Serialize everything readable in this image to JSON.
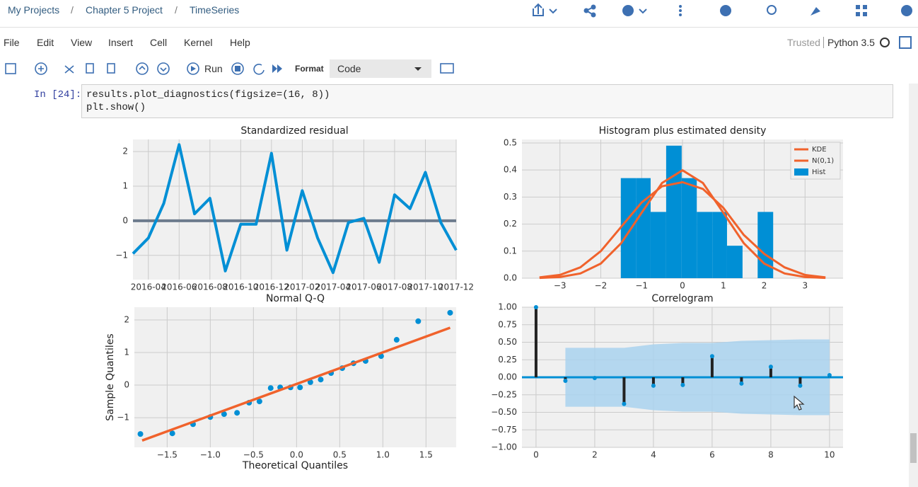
{
  "breadcrumb": [
    "My Projects",
    "/",
    "Chapter 5 Project",
    "/",
    "TimeSeries"
  ],
  "menu": [
    "File",
    "Edit",
    "View",
    "Insert",
    "Cell",
    "Kernel",
    "Help"
  ],
  "status": {
    "trusted": "Trusted",
    "kernel": "Python 3.5"
  },
  "toolbar": {
    "run": "Run",
    "format": "Format",
    "cell_type": "Code"
  },
  "cell": {
    "prompt": "In [24]:",
    "code": [
      "results.plot_diagnostics(figsize=(16, 8))",
      "plt.show()"
    ]
  },
  "chart_data": [
    {
      "type": "line",
      "title": "Standardized residual",
      "x": [
        "2016-03",
        "2016-04",
        "2016-05",
        "2016-06",
        "2016-07",
        "2016-08",
        "2016-09",
        "2016-10",
        "2016-11",
        "2016-12",
        "2017-01",
        "2017-02",
        "2017-03",
        "2017-04",
        "2017-05",
        "2017-06",
        "2017-07",
        "2017-08",
        "2017-09",
        "2017-10",
        "2017-11",
        "2017-12"
      ],
      "values": [
        -0.95,
        -0.5,
        0.5,
        2.2,
        0.2,
        0.65,
        -1.45,
        -0.1,
        -0.1,
        1.95,
        -0.85,
        0.87,
        -0.5,
        -1.5,
        -0.05,
        0.07,
        -1.2,
        0.75,
        0.35,
        1.4,
        -0.05,
        -0.85
      ],
      "color": "#008fd5",
      "hline": 0,
      "hline_color": "#6d7b8d",
      "xticks": [
        "2016-04",
        "2016-06",
        "2016-08",
        "2016-10",
        "2016-12",
        "2017-02",
        "2017-04",
        "2017-06",
        "2017-08",
        "2017-10",
        "2017-12"
      ],
      "ylim": [
        -1.7,
        2.35
      ],
      "yticks": [
        {
          "value": -1,
          "label": "−1"
        },
        0,
        1,
        2
      ],
      "grid": true
    },
    {
      "type": "histogram",
      "title": "Histogram plus estimated density",
      "name": "Hist",
      "color": "#008fd5",
      "bins": [
        -1.51,
        -1.14,
        -0.78,
        -0.4,
        -0.02,
        0.35,
        0.73,
        1.09,
        1.47,
        1.84,
        2.22
      ],
      "values": [
        0.37,
        0.37,
        0.245,
        0.49,
        0.37,
        0.245,
        0.245,
        0.12,
        0,
        0.245
      ],
      "series": [
        {
          "name": "KDE",
          "color": "#f0622c",
          "x": [
            -3.5,
            -3,
            -2.5,
            -2,
            -1.5,
            -1,
            -0.5,
            0,
            0.5,
            1,
            1.5,
            2,
            2.5,
            3,
            3.5
          ],
          "values": [
            0.003,
            0.012,
            0.04,
            0.1,
            0.19,
            0.28,
            0.34,
            0.355,
            0.33,
            0.26,
            0.16,
            0.09,
            0.04,
            0.012,
            0.003
          ]
        },
        {
          "name": "N(0,1)",
          "color": "#f0622c",
          "x": [
            -3.5,
            -3,
            -2.5,
            -2,
            -1.5,
            -1,
            -0.5,
            0,
            0.5,
            1,
            1.5,
            2,
            2.5,
            3,
            3.5
          ],
          "values": [
            0.0009,
            0.0044,
            0.0175,
            0.054,
            0.1295,
            0.242,
            0.352,
            0.399,
            0.352,
            0.242,
            0.1295,
            0.054,
            0.0175,
            0.0044,
            0.0009
          ]
        }
      ],
      "legend": "upper right",
      "xlim": [
        -3.93,
        3.93
      ],
      "xticks": [
        {
          "value": -3,
          "label": "−3"
        },
        {
          "value": -2,
          "label": "−2"
        },
        {
          "value": -1,
          "label": "−1"
        },
        0,
        1,
        2,
        3
      ],
      "ylim": [
        0,
        0.513
      ],
      "yticks": [
        {
          "value": 0,
          "label": "0.0"
        },
        0.1,
        0.2,
        0.3,
        0.4,
        0.5
      ],
      "grid": true
    },
    {
      "type": "scatter",
      "title": "Normal Q-Q",
      "xlabel": "Theoretical Quantiles",
      "ylabel": "Sample Quantiles",
      "color": "#008fd5",
      "x": [
        -1.81,
        -1.44,
        -1.2,
        -1.0,
        -0.84,
        -0.69,
        -0.55,
        -0.43,
        -0.3,
        -0.19,
        -0.07,
        0.04,
        0.16,
        0.28,
        0.4,
        0.53,
        0.66,
        0.8,
        0.98,
        1.16,
        1.41,
        1.78
      ],
      "values": [
        -1.5,
        -1.48,
        -1.2,
        -0.98,
        -0.89,
        -0.85,
        -0.54,
        -0.5,
        -0.09,
        -0.07,
        -0.07,
        -0.07,
        0.09,
        0.17,
        0.37,
        0.52,
        0.67,
        0.74,
        0.89,
        1.39,
        1.96,
        2.22
      ],
      "fit_line": {
        "x": [
          -1.79,
          1.78
        ],
        "y": [
          -1.7,
          1.76
        ],
        "color": "#f0622c"
      },
      "xlim": [
        -1.88,
        1.85
      ],
      "xticks": [
        {
          "value": -1.5,
          "label": "−1.5"
        },
        {
          "value": -1,
          "label": "−1.0"
        },
        {
          "value": -0.5,
          "label": "−0.5"
        },
        {
          "value": 0,
          "label": "0.0"
        },
        0.5,
        {
          "value": 1,
          "label": "1.0"
        },
        1.5
      ],
      "ylim": [
        -1.91,
        2.39
      ],
      "yticks": [
        {
          "value": -1,
          "label": "−1"
        },
        0,
        1,
        2
      ],
      "grid": true
    },
    {
      "type": "stem",
      "title": "Correlogram",
      "color": "#008fd5",
      "stem_color": "#222222",
      "hline": 0,
      "hline_color": "#008fd5",
      "band_color": "#a9d2ee",
      "x": [
        0,
        1,
        2,
        3,
        4,
        5,
        6,
        7,
        8,
        9,
        10
      ],
      "values": [
        1.0,
        -0.05,
        -0.01,
        -0.38,
        -0.12,
        -0.11,
        0.3,
        -0.09,
        0.15,
        -0.12,
        0.03
      ],
      "confint_x": [
        1,
        2,
        3,
        4,
        5,
        6,
        7,
        8,
        9,
        10
      ],
      "confint_upper": [
        0.42,
        0.42,
        0.42,
        0.47,
        0.49,
        0.49,
        0.52,
        0.53,
        0.54,
        0.54
      ],
      "confint_lower": [
        -0.42,
        -0.42,
        -0.42,
        -0.47,
        -0.49,
        -0.49,
        -0.52,
        -0.53,
        -0.54,
        -0.54
      ],
      "xlim": [
        -0.48,
        10.46
      ],
      "xticks": [
        0,
        2,
        4,
        6,
        8,
        10
      ],
      "ylim": [
        -1,
        1
      ],
      "yticks": [
        {
          "value": -1,
          "label": "−1.00"
        },
        {
          "value": -0.75,
          "label": "−0.75"
        },
        {
          "value": -0.5,
          "label": "−0.50"
        },
        {
          "value": -0.25,
          "label": "−0.25"
        },
        {
          "value": 0,
          "label": "0.00"
        },
        {
          "value": 0.25,
          "label": "0.25"
        },
        {
          "value": 0.5,
          "label": "0.50"
        },
        {
          "value": 0.75,
          "label": "0.75"
        },
        {
          "value": 1,
          "label": "1.00"
        }
      ],
      "grid": true
    }
  ]
}
